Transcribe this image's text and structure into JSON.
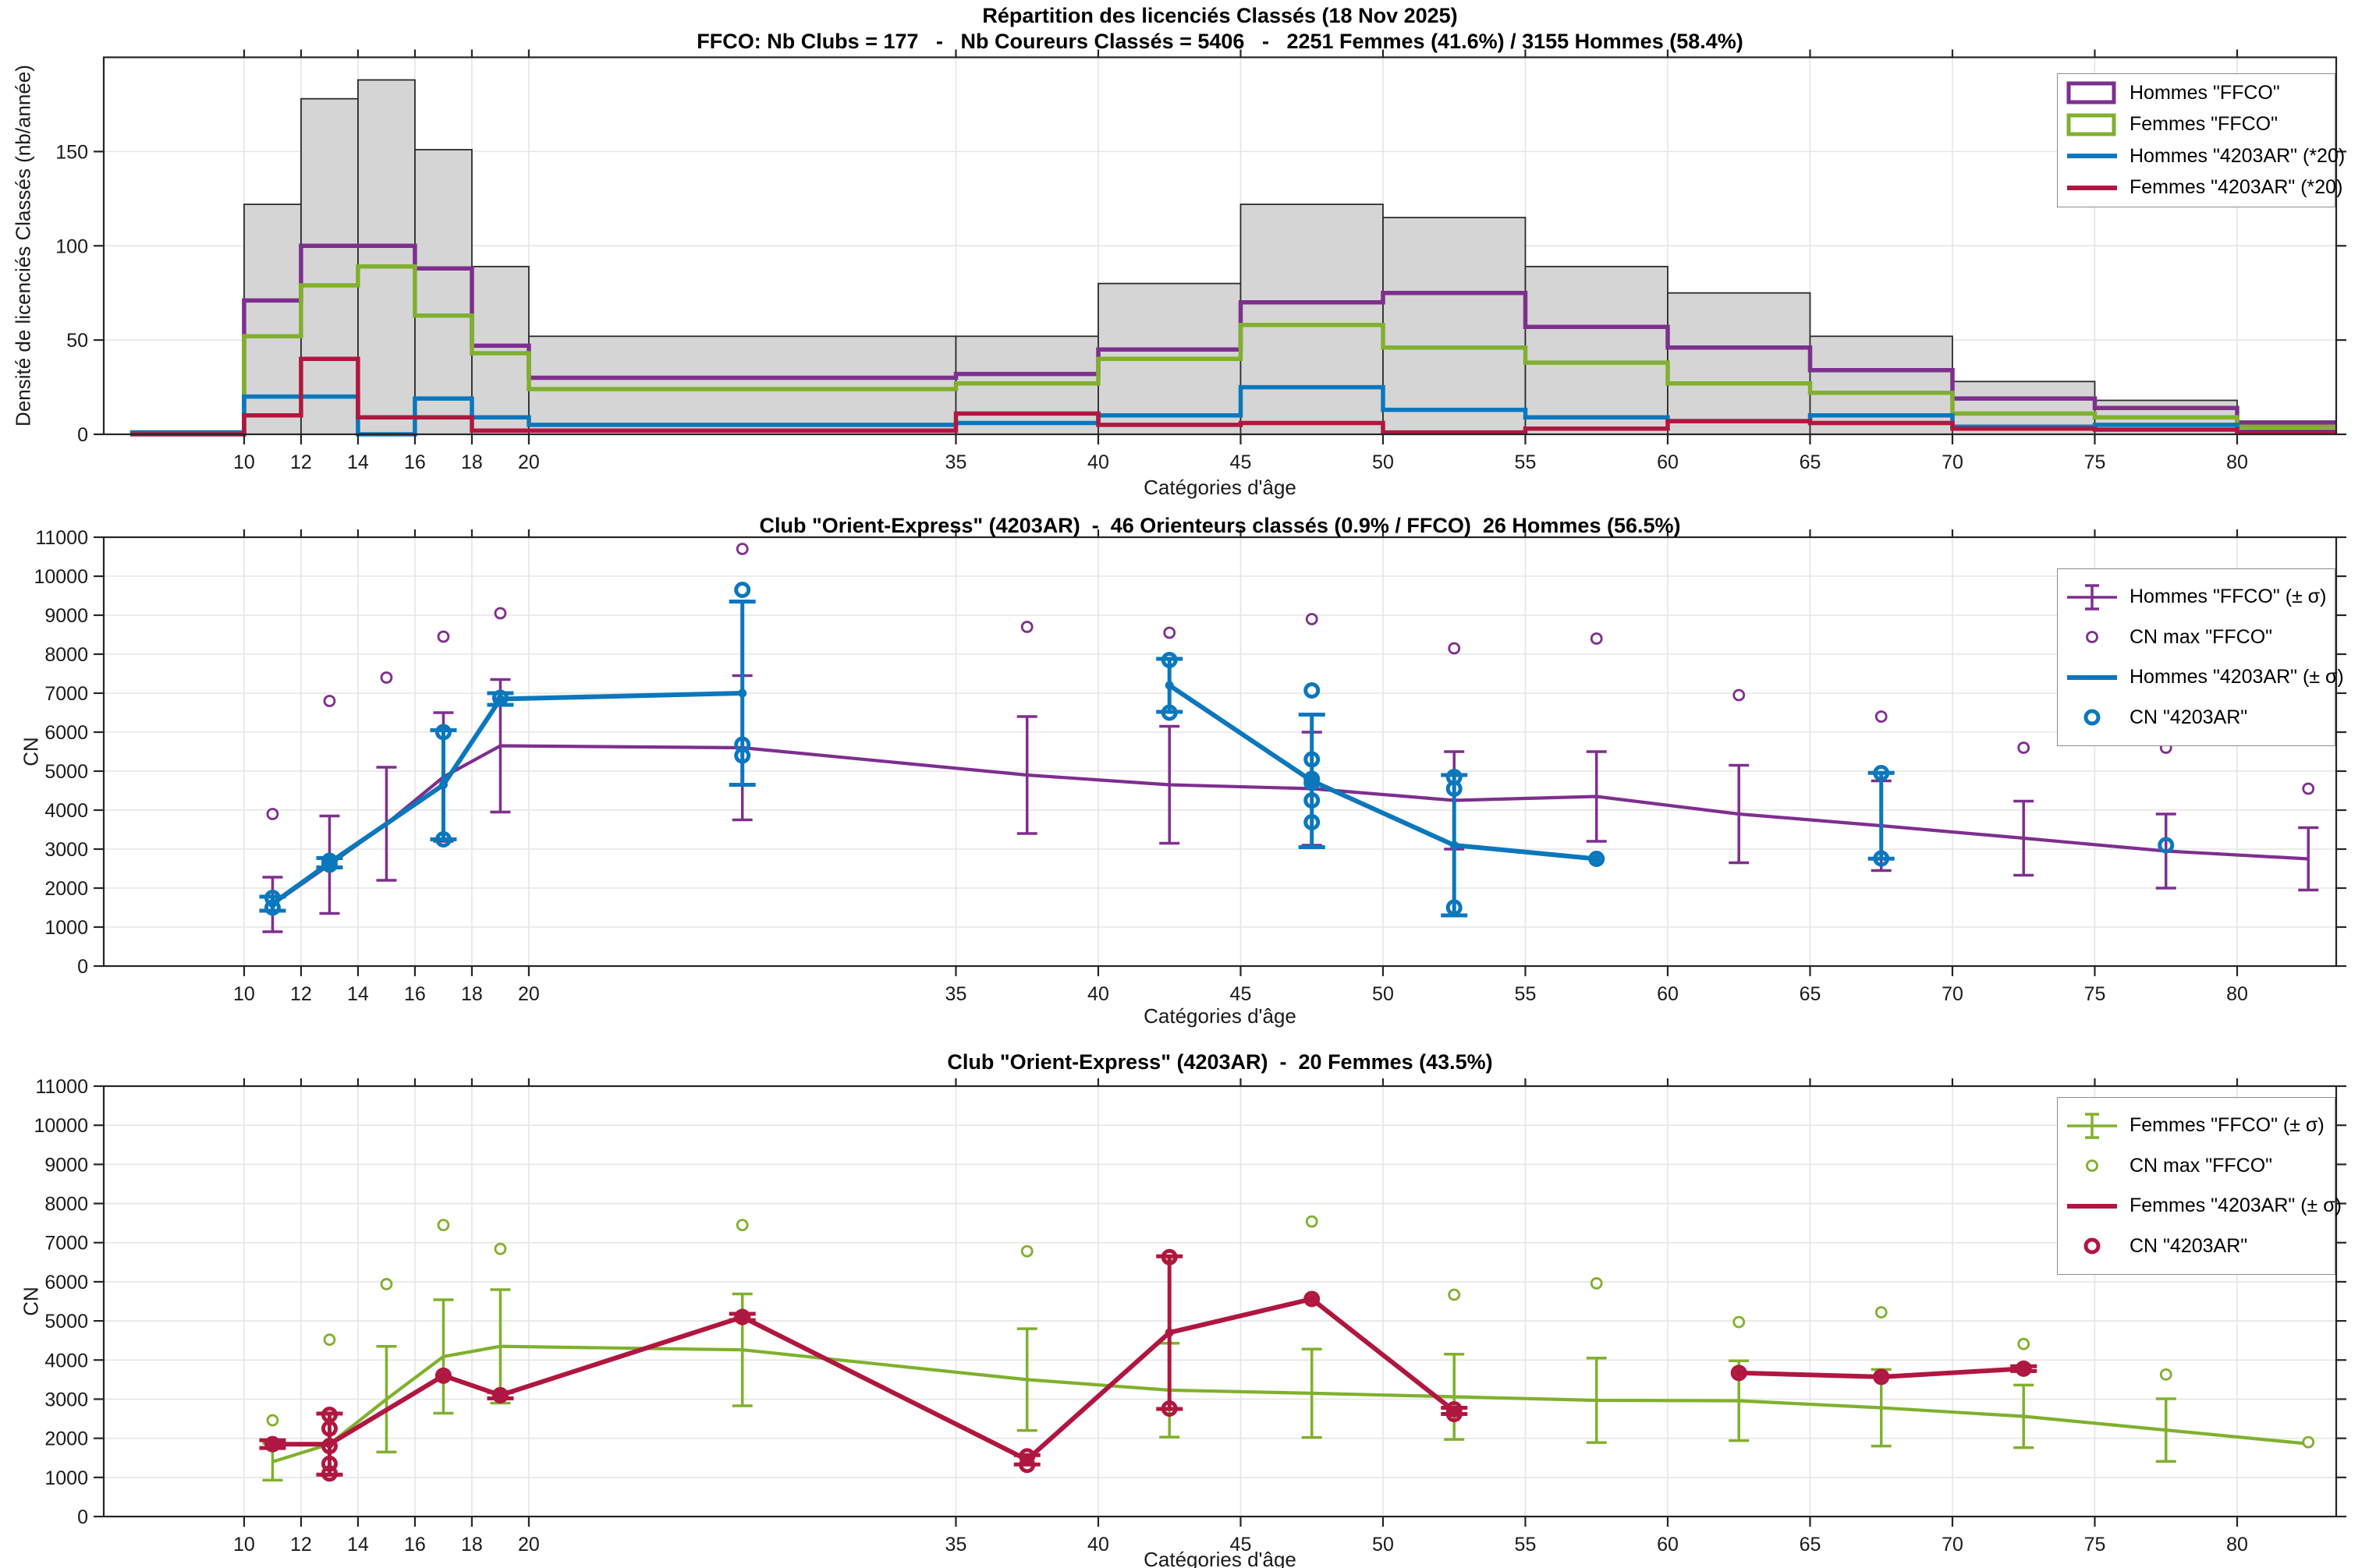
{
  "figure": {
    "background": "#ffffff"
  },
  "colors": {
    "purple": "#7E2F8E",
    "green": "#80B02E",
    "blue": "#0B77BD",
    "red": "#B01740",
    "bar_fill": "#D5D5D5",
    "bar_edge": "#2B2B2B",
    "grid": "#E5E5E5",
    "axis": "#252525",
    "text": "#1A1A1A"
  },
  "chart_data": [
    {
      "type": "bar",
      "subtype": "histogram-with-step-outlines",
      "title": "Répartition des licenciés Classés (18 Nov 2025)",
      "subtitle": "FFCO: Nb Clubs = 177   -   Nb Coureurs Classés = 5406   -   2251 Femmes (41.6%) / 3155 Hommes (58.4%)",
      "xlabel": "Catégories d'âge",
      "ylabel": "Densité de licenciés Classés (nb/année)",
      "xlim": [
        5.07,
        83.48
      ],
      "ylim": [
        0,
        200
      ],
      "x_ticks": [
        10,
        12,
        14,
        16,
        18,
        20,
        35,
        40,
        45,
        50,
        55,
        60,
        65,
        70,
        75,
        80
      ],
      "y_ticks": [
        0,
        50,
        100,
        150
      ],
      "grid": true,
      "bin_edges": [
        6,
        10,
        12,
        14,
        16,
        18,
        20,
        35,
        40,
        45,
        50,
        55,
        60,
        65,
        70,
        75,
        80,
        85
      ],
      "series": [
        {
          "name": "Total licenciés classés FFCO",
          "style": "bar",
          "color": "#D5D5D5",
          "edge": "#2B2B2B",
          "values": [
            0,
            122,
            178,
            188,
            151,
            89,
            52,
            52,
            80,
            122,
            115,
            89,
            75,
            52,
            28,
            18,
            7
          ]
        },
        {
          "name": "Hommes \"FFCO\"",
          "style": "step",
          "color_key": "purple",
          "data_name": "hommes-ffco-step",
          "values": [
            1,
            71,
            100,
            100,
            88,
            47,
            30,
            32,
            45,
            70,
            75,
            57,
            46,
            34,
            19,
            14,
            6
          ]
        },
        {
          "name": "Femmes \"FFCO\"",
          "style": "step",
          "color_key": "green",
          "data_name": "femmes-ffco-step",
          "values": [
            1,
            52,
            79,
            89,
            63,
            43,
            24,
            27,
            40,
            58,
            46,
            38,
            27,
            22,
            11,
            9,
            4
          ]
        },
        {
          "name": "Hommes \"4203AR\" (*20)",
          "style": "step",
          "color_key": "blue",
          "data_name": "hommes-club-step",
          "values": [
            1,
            20,
            20,
            0,
            19,
            9,
            5,
            6,
            10,
            25,
            13,
            9,
            7,
            10,
            4,
            5,
            1.5
          ]
        },
        {
          "name": "Femmes \"4203AR\" (*20)",
          "style": "step",
          "color_key": "red",
          "data_name": "femmes-club-step",
          "values": [
            0,
            10,
            40,
            9,
            9,
            2,
            2,
            11,
            5,
            6,
            1,
            3,
            7,
            6,
            3,
            2.5,
            1
          ]
        }
      ],
      "legend": [
        {
          "label": "Hommes \"FFCO\"",
          "symbol": "box",
          "color_key": "purple"
        },
        {
          "label": "Femmes \"FFCO\"",
          "symbol": "box",
          "color_key": "green"
        },
        {
          "label": "Hommes \"4203AR\" (*20)",
          "symbol": "line",
          "color_key": "blue"
        },
        {
          "label": "Femmes \"4203AR\" (*20)",
          "symbol": "line",
          "color_key": "red"
        }
      ]
    },
    {
      "type": "line",
      "subtype": "errorbar-scatter",
      "title": "Club \"Orient-Express\" (4203AR)  -  46 Orienteurs classés (0.9% / FFCO)  26 Hommes (56.5%)",
      "xlabel": "Catégories d'âge",
      "ylabel": "CN",
      "xlim": [
        5.07,
        83.48
      ],
      "ylim": [
        0,
        11000
      ],
      "x_ticks": [
        10,
        12,
        14,
        16,
        18,
        20,
        35,
        40,
        45,
        50,
        55,
        60,
        65,
        70,
        75,
        80
      ],
      "y_ticks": [
        0,
        1000,
        2000,
        3000,
        4000,
        5000,
        6000,
        7000,
        8000,
        9000,
        10000,
        11000
      ],
      "grid": true,
      "ffco_color": "purple",
      "club_color": "blue",
      "ffco": {
        "name": "Hommes \"FFCO\" (± σ)",
        "max_name": "CN max \"FFCO\"",
        "ages": [
          11,
          13,
          15,
          17,
          19,
          27.5,
          37.5,
          42.5,
          47.5,
          52.5,
          57.5,
          62.5,
          67.5,
          72.5,
          77.5,
          82.5
        ],
        "mean": [
          1580,
          2600,
          3650,
          4850,
          5650,
          5600,
          4900,
          4650,
          4550,
          4250,
          4350,
          3900,
          3600,
          3280,
          2950,
          2750
        ],
        "sigma": [
          700,
          1250,
          1450,
          1650,
          1700,
          1850,
          1500,
          1500,
          1450,
          1250,
          1150,
          1250,
          1150,
          950,
          950,
          800
        ],
        "max": [
          3900,
          6800,
          7400,
          8450,
          9050,
          10700,
          8700,
          8550,
          8900,
          8150,
          8400,
          6950,
          6400,
          5600,
          5600,
          4550
        ]
      },
      "club": {
        "name": "Hommes \"4203AR\" (± σ)",
        "dots_name": "CN \"4203AR\"",
        "segments": [
          {
            "ages": [
              11,
              13,
              17,
              19,
              27.5
            ],
            "mean": [
              1600,
              2650,
              4650,
              6850,
              7000
            ],
            "sigma": [
              180,
              120,
              1400,
              150,
              2350
            ]
          },
          {
            "ages": [
              42.5,
              47.5,
              52.5,
              57.5
            ],
            "mean": [
              7200,
              4750,
              3100,
              2750
            ],
            "sigma": [
              680,
              1700,
              1800,
              0
            ]
          }
        ],
        "isolated": [
          {
            "age": 67.5,
            "mean": 3855,
            "sigma": 1100
          }
        ],
        "dots": [
          {
            "age": 11,
            "values": [
              1750,
              1500
            ]
          },
          {
            "age": 13,
            "values": [
              2700,
              2600
            ]
          },
          {
            "age": 17,
            "values": [
              6000,
              3250
            ]
          },
          {
            "age": 19,
            "values": [
              6880
            ]
          },
          {
            "age": 27.5,
            "values": [
              9650,
              5680,
              5400
            ]
          },
          {
            "age": 42.5,
            "values": [
              7850,
              6500
            ]
          },
          {
            "age": 47.5,
            "values": [
              7070,
              5300,
              4800,
              4700,
              4250,
              3690
            ]
          },
          {
            "age": 52.5,
            "values": [
              4850,
              4550,
              1500
            ]
          },
          {
            "age": 57.5,
            "values": [
              2750
            ]
          },
          {
            "age": 67.5,
            "values": [
              4950,
              2760
            ]
          },
          {
            "age": 77.5,
            "values": [
              3100
            ]
          }
        ]
      },
      "legend": [
        {
          "label": "Hommes \"FFCO\" (± σ)",
          "symbol": "errorbar",
          "color_key": "purple"
        },
        {
          "label": "CN max \"FFCO\"",
          "symbol": "circle",
          "color_key": "purple"
        },
        {
          "label": "Hommes \"4203AR\" (± σ)",
          "symbol": "line",
          "color_key": "blue"
        },
        {
          "label": "CN \"4203AR\"",
          "symbol": "circle-bold",
          "color_key": "blue"
        }
      ]
    },
    {
      "type": "line",
      "subtype": "errorbar-scatter",
      "title": "Club \"Orient-Express\" (4203AR)  -  20 Femmes (43.5%)",
      "xlabel": "Catégories d'âge",
      "ylabel": "CN",
      "xlim": [
        5.07,
        83.48
      ],
      "ylim": [
        0,
        11000
      ],
      "x_ticks": [
        10,
        12,
        14,
        16,
        18,
        20,
        35,
        40,
        45,
        50,
        55,
        60,
        65,
        70,
        75,
        80
      ],
      "y_ticks": [
        0,
        1000,
        2000,
        3000,
        4000,
        5000,
        6000,
        7000,
        8000,
        9000,
        10000,
        11000
      ],
      "grid": true,
      "ffco_color": "green",
      "club_color": "red",
      "ffco": {
        "name": "Femmes \"FFCO\" (± σ)",
        "max_name": "CN max \"FFCO\"",
        "ages": [
          11,
          13,
          15,
          17,
          19,
          27.5,
          37.5,
          42.5,
          47.5,
          52.5,
          57.5,
          62.5,
          67.5,
          72.5,
          77.5,
          82.5
        ],
        "mean": [
          1400,
          1850,
          3000,
          4090,
          4350,
          4260,
          3500,
          3230,
          3150,
          3060,
          2970,
          2960,
          2780,
          2560,
          2210,
          1860
        ],
        "sigma": [
          470,
          800,
          1350,
          1450,
          1450,
          1430,
          1300,
          1200,
          1130,
          1090,
          1080,
          1020,
          980,
          800,
          800,
          0
        ],
        "max": [
          2460,
          4520,
          5940,
          7450,
          6840,
          7450,
          6780,
          6650,
          7540,
          5670,
          5960,
          4970,
          5220,
          4410,
          3630,
          1900
        ]
      },
      "club": {
        "name": "Femmes \"4203AR\" (± σ)",
        "dots_name": "CN \"4203AR\"",
        "segments": [
          {
            "ages": [
              11,
              13,
              17,
              19,
              27.5,
              37.5,
              42.5,
              47.5,
              52.5
            ],
            "mean": [
              1850,
              1850,
              3600,
              3100,
              5100,
              1450,
              4700,
              5560,
              2700
            ],
            "sigma": [
              100,
              780,
              0,
              80,
              80,
              120,
              1950,
              0,
              80
            ]
          },
          {
            "ages": [
              62.5,
              67.5,
              72.5
            ],
            "mean": [
              3670,
              3570,
              3780
            ],
            "sigma": [
              0,
              0,
              60
            ]
          }
        ],
        "isolated": [],
        "dots": [
          {
            "age": 11,
            "values": [
              1850
            ]
          },
          {
            "age": 13,
            "values": [
              2600,
              2250,
              1800,
              1350,
              1100
            ]
          },
          {
            "age": 17,
            "values": [
              3600
            ]
          },
          {
            "age": 19,
            "values": [
              3100
            ]
          },
          {
            "age": 27.5,
            "values": [
              5100
            ]
          },
          {
            "age": 37.5,
            "values": [
              1540,
              1320
            ]
          },
          {
            "age": 42.5,
            "values": [
              6630,
              2760
            ]
          },
          {
            "age": 47.5,
            "values": [
              5560
            ]
          },
          {
            "age": 52.5,
            "values": [
              2740,
              2620
            ]
          },
          {
            "age": 62.5,
            "values": [
              3670
            ]
          },
          {
            "age": 67.5,
            "values": [
              3570
            ]
          },
          {
            "age": 72.5,
            "values": [
              3780
            ]
          }
        ]
      },
      "legend": [
        {
          "label": "Femmes \"FFCO\" (± σ)",
          "symbol": "errorbar",
          "color_key": "green"
        },
        {
          "label": "CN max \"FFCO\"",
          "symbol": "circle",
          "color_key": "green"
        },
        {
          "label": "Femmes \"4203AR\" (± σ)",
          "symbol": "line",
          "color_key": "red"
        },
        {
          "label": "CN \"4203AR\"",
          "symbol": "circle-bold",
          "color_key": "red"
        }
      ]
    }
  ]
}
